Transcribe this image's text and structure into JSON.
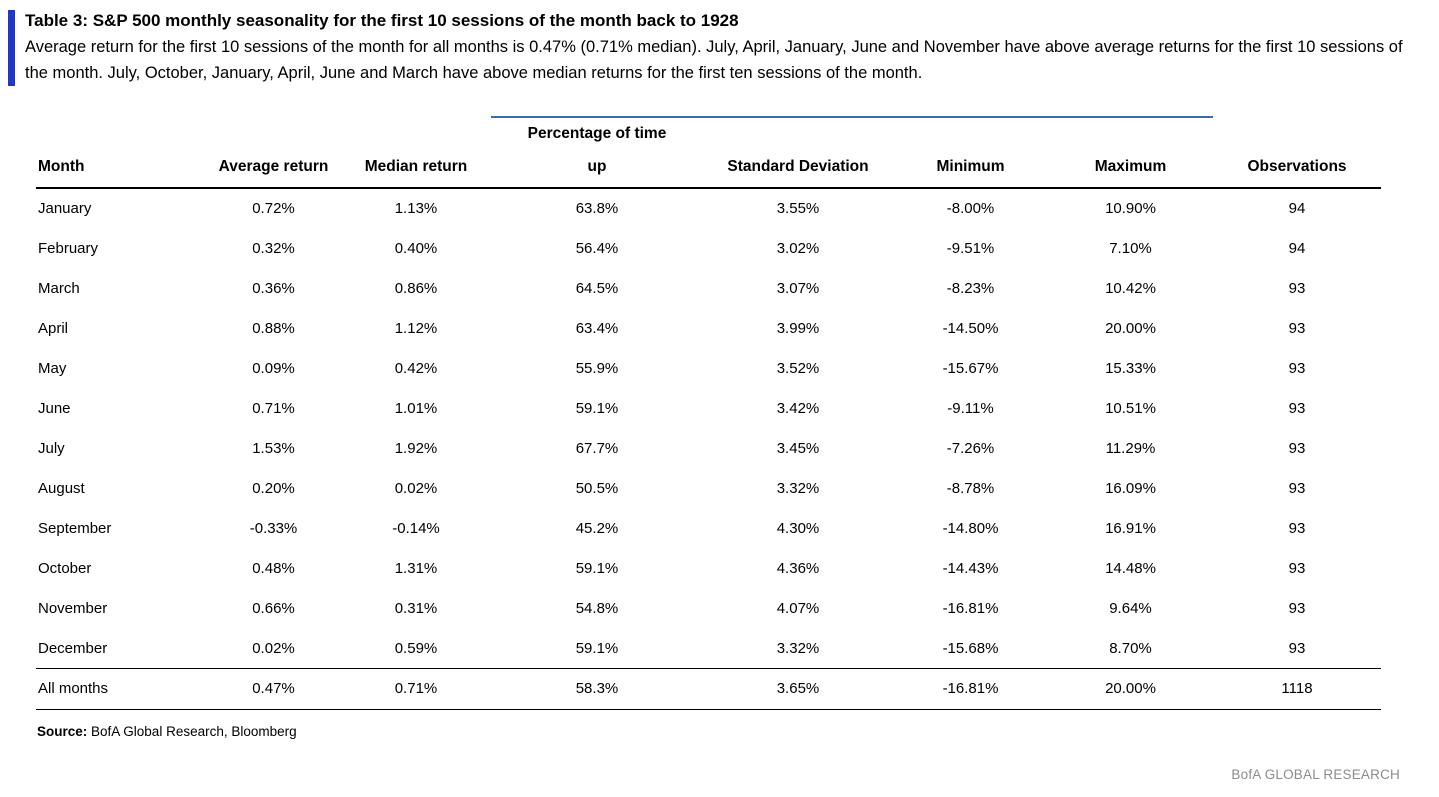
{
  "colors": {
    "accent": "#2136c4",
    "rule": "#3c6bb0",
    "gray": "#8c8c8c"
  },
  "header": {
    "title": "Table 3: S&P 500 monthly seasonality for the first 10 sessions of the month back to 1928",
    "subtitle": "Average return for the first 10 sessions of the month for all months is 0.47% (0.71% median). July, April, January, June and November have above average returns for the first 10 sessions of the month. July, October, January, April, June and March have above median returns for the first ten sessions of the month."
  },
  "table": {
    "spanner": "Percentage of time",
    "columns": [
      "Month",
      "Average return",
      "Median return",
      "up",
      "Standard Deviation",
      "Minimum",
      "Maximum",
      "Observations"
    ],
    "rows": [
      [
        "January",
        "0.72%",
        "1.13%",
        "63.8%",
        "3.55%",
        "-8.00%",
        "10.90%",
        "94"
      ],
      [
        "February",
        "0.32%",
        "0.40%",
        "56.4%",
        "3.02%",
        "-9.51%",
        "7.10%",
        "94"
      ],
      [
        "March",
        "0.36%",
        "0.86%",
        "64.5%",
        "3.07%",
        "-8.23%",
        "10.42%",
        "93"
      ],
      [
        "April",
        "0.88%",
        "1.12%",
        "63.4%",
        "3.99%",
        "-14.50%",
        "20.00%",
        "93"
      ],
      [
        "May",
        "0.09%",
        "0.42%",
        "55.9%",
        "3.52%",
        "-15.67%",
        "15.33%",
        "93"
      ],
      [
        "June",
        "0.71%",
        "1.01%",
        "59.1%",
        "3.42%",
        "-9.11%",
        "10.51%",
        "93"
      ],
      [
        "July",
        "1.53%",
        "1.92%",
        "67.7%",
        "3.45%",
        "-7.26%",
        "11.29%",
        "93"
      ],
      [
        "August",
        "0.20%",
        "0.02%",
        "50.5%",
        "3.32%",
        "-8.78%",
        "16.09%",
        "93"
      ],
      [
        "September",
        "-0.33%",
        "-0.14%",
        "45.2%",
        "4.30%",
        "-14.80%",
        "16.91%",
        "93"
      ],
      [
        "October",
        "0.48%",
        "1.31%",
        "59.1%",
        "4.36%",
        "-14.43%",
        "14.48%",
        "93"
      ],
      [
        "November",
        "0.66%",
        "0.31%",
        "54.8%",
        "4.07%",
        "-16.81%",
        "9.64%",
        "93"
      ],
      [
        "December",
        "0.02%",
        "0.59%",
        "59.1%",
        "3.32%",
        "-15.68%",
        "8.70%",
        "93"
      ]
    ],
    "total_row": [
      "All months",
      "0.47%",
      "0.71%",
      "58.3%",
      "3.65%",
      "-16.81%",
      "20.00%",
      "1118"
    ]
  },
  "source": {
    "label": "Source:",
    "text": " BofA Global Research, Bloomberg"
  },
  "footer": {
    "brand": "BofA GLOBAL RESEARCH"
  }
}
